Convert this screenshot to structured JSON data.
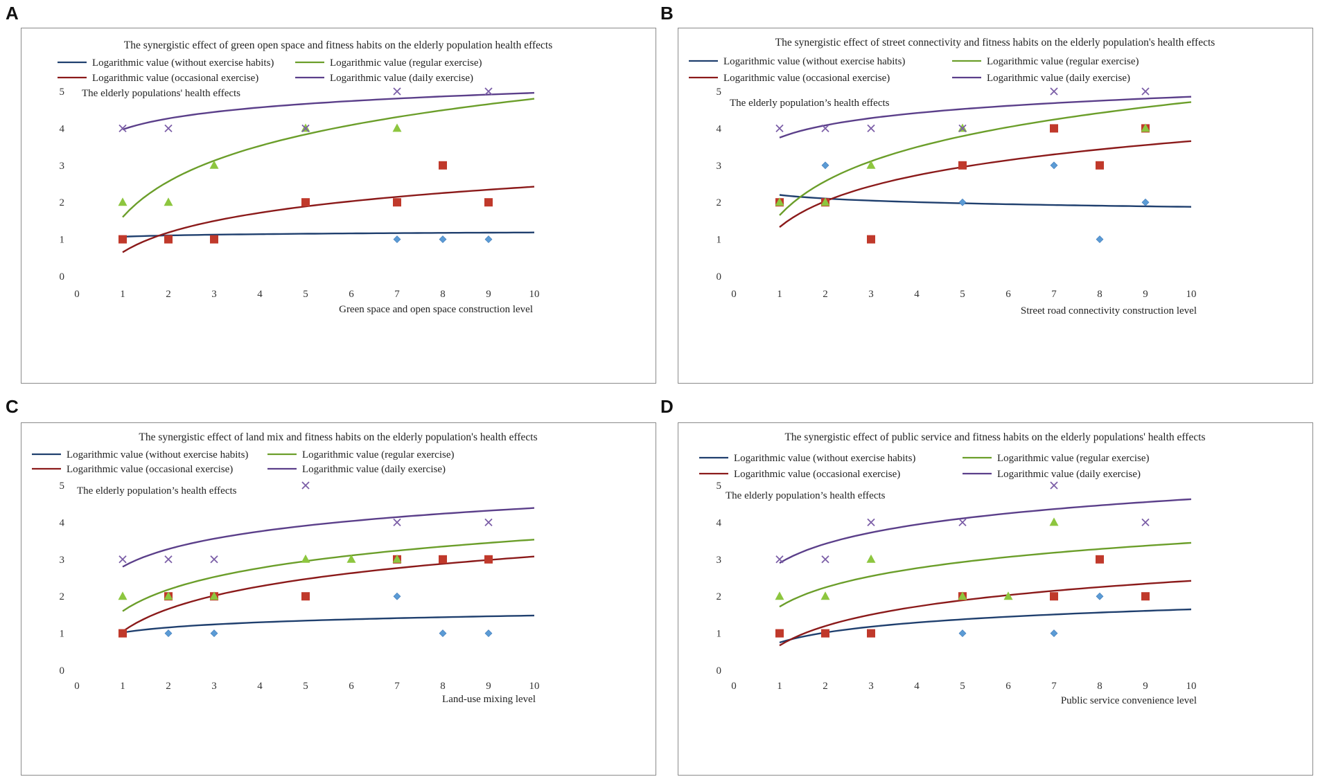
{
  "panels": [
    {
      "letter": "A"
    },
    {
      "letter": "B"
    },
    {
      "letter": "C"
    },
    {
      "letter": "D"
    }
  ],
  "chart_data": [
    {
      "type": "scatter",
      "panel": "A",
      "title": "The synergistic effect of green open space and fitness habits on the elderly population health effects",
      "ylabel": "The elderly populations' health effects",
      "xlabel": "Green space and open space construction level",
      "xlim": [
        0,
        10
      ],
      "ylim": [
        0,
        5
      ],
      "xticks": [
        0,
        1,
        2,
        3,
        4,
        5,
        6,
        7,
        8,
        9,
        10
      ],
      "yticks": [
        0,
        1,
        2,
        3,
        4,
        5
      ],
      "legend": [
        "Logarithmic value (without exercise habits)",
        "Logarithmic value (regular exercise)",
        "Logarithmic value (occasional exercise)",
        "Logarithmic value (daily exercise)"
      ],
      "series": [
        {
          "name": "without exercise habits",
          "marker": "diamond",
          "color": "#5b9bd5",
          "line_color": "#1f3f6e",
          "points": [
            [
              7,
              1
            ],
            [
              8,
              1
            ],
            [
              9,
              1
            ]
          ],
          "trend": {
            "a": 1.07,
            "b": 0.05
          }
        },
        {
          "name": "occasional exercise",
          "marker": "square",
          "color": "#c0392b",
          "line_color": "#8b1a1a",
          "points": [
            [
              1,
              1
            ],
            [
              2,
              1
            ],
            [
              3,
              1
            ],
            [
              5,
              2
            ],
            [
              7,
              2
            ],
            [
              8,
              3
            ],
            [
              9,
              2
            ]
          ],
          "trend": {
            "a": 0.65,
            "b": 0.77
          }
        },
        {
          "name": "regular exercise",
          "marker": "triangle",
          "color": "#8dc63f",
          "line_color": "#6b9e2a",
          "points": [
            [
              1,
              2
            ],
            [
              2,
              2
            ],
            [
              3,
              3
            ],
            [
              5,
              4
            ],
            [
              7,
              4
            ]
          ],
          "trend": {
            "a": 1.6,
            "b": 1.39
          }
        },
        {
          "name": "daily exercise",
          "marker": "x",
          "color": "#7b5ea7",
          "line_color": "#5b3f8a",
          "points": [
            [
              1,
              4
            ],
            [
              2,
              4
            ],
            [
              5,
              4
            ],
            [
              7,
              5
            ],
            [
              9,
              5
            ]
          ],
          "trend": {
            "a": 3.97,
            "b": 0.43
          }
        }
      ]
    },
    {
      "type": "scatter",
      "panel": "B",
      "title": "The synergistic effect of street connectivity and fitness habits on the elderly population's health effects",
      "ylabel": "The elderly population’s health effects",
      "xlabel": "Street road connectivity construction level",
      "xlim": [
        0,
        10
      ],
      "ylim": [
        0,
        5
      ],
      "xticks": [
        0,
        1,
        2,
        3,
        4,
        5,
        6,
        7,
        8,
        9,
        10
      ],
      "yticks": [
        0,
        1,
        2,
        3,
        4,
        5
      ],
      "legend": [
        "Logarithmic value (without exercise habits)",
        "Logarithmic value (regular exercise)",
        "Logarithmic value (occasional exercise)",
        "Logarithmic value (daily exercise)"
      ],
      "series": [
        {
          "name": "without exercise habits",
          "marker": "diamond",
          "color": "#5b9bd5",
          "line_color": "#1f3f6e",
          "points": [
            [
              1,
              2
            ],
            [
              2,
              3
            ],
            [
              5,
              2
            ],
            [
              7,
              3
            ],
            [
              8,
              1
            ],
            [
              9,
              2
            ]
          ],
          "trend": {
            "a": 2.2,
            "b": -0.14
          }
        },
        {
          "name": "occasional exercise",
          "marker": "square",
          "color": "#c0392b",
          "line_color": "#8b1a1a",
          "points": [
            [
              1,
              2
            ],
            [
              2,
              2
            ],
            [
              3,
              1
            ],
            [
              5,
              3
            ],
            [
              7,
              4
            ],
            [
              8,
              3
            ],
            [
              9,
              4
            ]
          ],
          "trend": {
            "a": 1.33,
            "b": 1.01
          }
        },
        {
          "name": "regular exercise",
          "marker": "triangle",
          "color": "#8dc63f",
          "line_color": "#6b9e2a",
          "points": [
            [
              1,
              2
            ],
            [
              2,
              2
            ],
            [
              3,
              3
            ],
            [
              5,
              4
            ],
            [
              9,
              4
            ]
          ],
          "trend": {
            "a": 1.65,
            "b": 1.33
          }
        },
        {
          "name": "daily exercise",
          "marker": "x",
          "color": "#7b5ea7",
          "line_color": "#5b3f8a",
          "points": [
            [
              1,
              4
            ],
            [
              2,
              4
            ],
            [
              3,
              4
            ],
            [
              5,
              4
            ],
            [
              7,
              5
            ],
            [
              9,
              5
            ]
          ],
          "trend": {
            "a": 3.75,
            "b": 0.48
          }
        }
      ]
    },
    {
      "type": "scatter",
      "panel": "C",
      "title": "The synergistic effect of land mix and fitness habits on the elderly population's health effects",
      "ylabel": "The elderly population’s health effects",
      "xlabel": "Land-use mixing level",
      "xlim": [
        0,
        10
      ],
      "ylim": [
        0,
        5
      ],
      "xticks": [
        0,
        1,
        2,
        3,
        4,
        5,
        6,
        7,
        8,
        9,
        10
      ],
      "yticks": [
        0,
        1,
        2,
        3,
        4,
        5
      ],
      "legend": [
        "Logarithmic value (without exercise habits)",
        "Logarithmic value (regular exercise)",
        "Logarithmic value (occasional exercise)",
        "Logarithmic value (daily exercise)"
      ],
      "series": [
        {
          "name": "without exercise habits",
          "marker": "diamond",
          "color": "#5b9bd5",
          "line_color": "#1f3f6e",
          "points": [
            [
              2,
              1
            ],
            [
              3,
              1
            ],
            [
              7,
              2
            ],
            [
              8,
              1
            ],
            [
              9,
              1
            ]
          ],
          "trend": {
            "a": 1.02,
            "b": 0.2
          }
        },
        {
          "name": "occasional exercise",
          "marker": "square",
          "color": "#c0392b",
          "line_color": "#8b1a1a",
          "points": [
            [
              1,
              1
            ],
            [
              2,
              2
            ],
            [
              3,
              2
            ],
            [
              5,
              2
            ],
            [
              7,
              3
            ],
            [
              8,
              3
            ],
            [
              9,
              3
            ]
          ],
          "trend": {
            "a": 1.05,
            "b": 0.88
          }
        },
        {
          "name": "regular exercise",
          "marker": "triangle",
          "color": "#8dc63f",
          "line_color": "#6b9e2a",
          "points": [
            [
              1,
              2
            ],
            [
              2,
              2
            ],
            [
              3,
              2
            ],
            [
              5,
              3
            ],
            [
              6,
              3
            ],
            [
              7,
              3
            ]
          ],
          "trend": {
            "a": 1.6,
            "b": 0.84
          }
        },
        {
          "name": "daily exercise",
          "marker": "x",
          "color": "#7b5ea7",
          "line_color": "#5b3f8a",
          "points": [
            [
              1,
              3
            ],
            [
              2,
              3
            ],
            [
              3,
              3
            ],
            [
              5,
              5
            ],
            [
              7,
              4
            ],
            [
              9,
              4
            ]
          ],
          "trend": {
            "a": 2.8,
            "b": 0.69
          }
        }
      ]
    },
    {
      "type": "scatter",
      "panel": "D",
      "title": "The synergistic effect of public service and fitness habits on the elderly populations' health effects",
      "ylabel": "The elderly population’s health effects",
      "xlabel": "Public service convenience level",
      "xlim": [
        0,
        10
      ],
      "ylim": [
        0,
        5
      ],
      "xticks": [
        0,
        1,
        2,
        3,
        4,
        5,
        6,
        7,
        8,
        9,
        10
      ],
      "yticks": [
        0,
        1,
        2,
        3,
        4,
        5
      ],
      "legend": [
        "Logarithmic value (without exercise habits)",
        "Logarithmic value (regular exercise)",
        "Logarithmic value (occasional exercise)",
        "Logarithmic value (daily exercise)"
      ],
      "series": [
        {
          "name": "without exercise habits",
          "marker": "diamond",
          "color": "#5b9bd5",
          "line_color": "#1f3f6e",
          "points": [
            [
              5,
              1
            ],
            [
              7,
              1
            ],
            [
              8,
              2
            ]
          ],
          "trend": {
            "a": 0.75,
            "b": 0.39
          }
        },
        {
          "name": "occasional exercise",
          "marker": "square",
          "color": "#c0392b",
          "line_color": "#8b1a1a",
          "points": [
            [
              1,
              1
            ],
            [
              2,
              1
            ],
            [
              3,
              1
            ],
            [
              5,
              2
            ],
            [
              7,
              2
            ],
            [
              8,
              3
            ],
            [
              9,
              2
            ]
          ],
          "trend": {
            "a": 0.67,
            "b": 0.76
          }
        },
        {
          "name": "regular exercise",
          "marker": "triangle",
          "color": "#8dc63f",
          "line_color": "#6b9e2a",
          "points": [
            [
              1,
              2
            ],
            [
              2,
              2
            ],
            [
              3,
              3
            ],
            [
              5,
              2
            ],
            [
              6,
              2
            ],
            [
              7,
              4
            ]
          ],
          "trend": {
            "a": 1.72,
            "b": 0.75
          }
        },
        {
          "name": "daily exercise",
          "marker": "x",
          "color": "#7b5ea7",
          "line_color": "#5b3f8a",
          "points": [
            [
              1,
              3
            ],
            [
              2,
              3
            ],
            [
              3,
              4
            ],
            [
              5,
              4
            ],
            [
              7,
              5
            ],
            [
              9,
              4
            ]
          ],
          "trend": {
            "a": 2.9,
            "b": 0.75
          }
        }
      ]
    }
  ]
}
